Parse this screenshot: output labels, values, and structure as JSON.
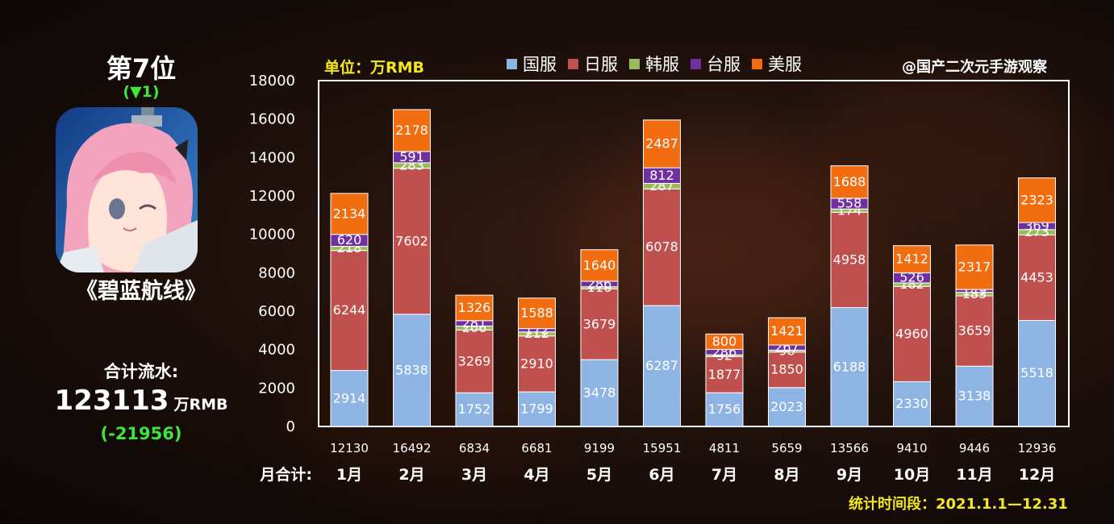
{
  "rank": {
    "title": "第7位",
    "change": "(▼1)"
  },
  "game": {
    "title": "《碧蓝航线》"
  },
  "summary": {
    "total_label": "合计流水:",
    "total_value": "123113",
    "total_unit": "万RMB",
    "total_diff": "(-21956)"
  },
  "unit_label": "单位：万RMB",
  "watermark": "@国产二次元手游观察",
  "period": "统计时间段：2021.1.1—12.31",
  "row_label": "月合计:",
  "colors": {
    "国服": "#8db4e3",
    "日服": "#c0504d",
    "韩服": "#9bbb59",
    "台服": "#7030a0",
    "美服": "#f26c10"
  },
  "chart_data": {
    "type": "bar",
    "stacked": true,
    "categories": [
      "1月",
      "2月",
      "3月",
      "4月",
      "5月",
      "6月",
      "7月",
      "8月",
      "9月",
      "10月",
      "11月",
      "12月"
    ],
    "totals": [
      "12130",
      "16492",
      "6834",
      "6681",
      "9199",
      "15951",
      "4811",
      "5659",
      "13566",
      "9410",
      "9446",
      "12936"
    ],
    "series": [
      {
        "name": "国服",
        "values": [
          2914,
          5838,
          1752,
          1799,
          3478,
          6287,
          1756,
          2023,
          6188,
          2330,
          3138,
          5518
        ]
      },
      {
        "name": "日服",
        "values": [
          6244,
          7602,
          3269,
          2910,
          3679,
          6078,
          1877,
          1850,
          4958,
          4960,
          3659,
          4453
        ]
      },
      {
        "name": "韩服",
        "values": [
          218,
          283,
          206,
          212,
          116,
          287,
          92,
          98,
          174,
          182,
          183,
          273
        ]
      },
      {
        "name": "台服",
        "values": [
          620,
          591,
          281,
          172,
          286,
          812,
          286,
          267,
          558,
          526,
          149,
          369
        ]
      },
      {
        "name": "美服",
        "values": [
          2134,
          2178,
          1326,
          1588,
          1640,
          2487,
          800,
          1421,
          1688,
          1412,
          2317,
          2323
        ]
      }
    ],
    "ylim": [
      0,
      18000
    ],
    "yticks": [
      "0",
      "2000",
      "4000",
      "6000",
      "8000",
      "10000",
      "12000",
      "14000",
      "16000",
      "18000"
    ],
    "legend_position": "top"
  }
}
